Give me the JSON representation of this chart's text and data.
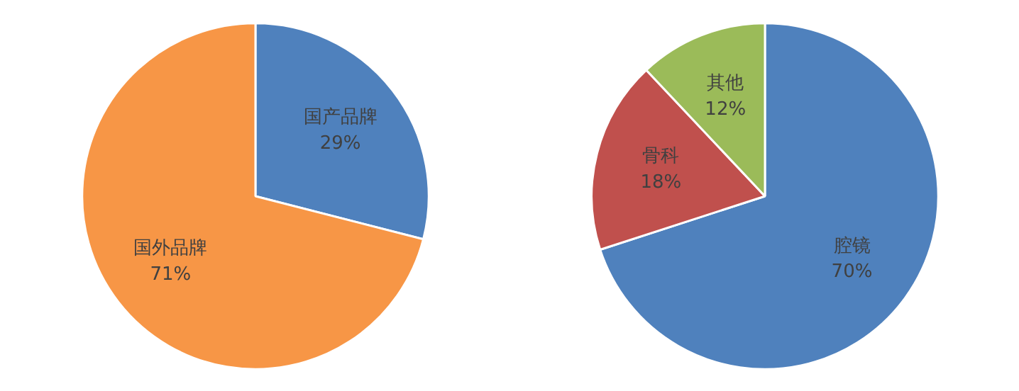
{
  "chart_data": [
    {
      "type": "pie",
      "categories": [
        "国产品牌",
        "国外品牌"
      ],
      "values": [
        29,
        71
      ],
      "value_labels": [
        "29%",
        "71%"
      ],
      "colors": [
        "#4f81bd",
        "#f79646"
      ]
    },
    {
      "type": "pie",
      "categories": [
        "腔镜",
        "骨科",
        "其他"
      ],
      "values": [
        70,
        18,
        12
      ],
      "value_labels": [
        "70%",
        "18%",
        "12%"
      ],
      "colors": [
        "#4f81bd",
        "#c0504d",
        "#9bbb59"
      ]
    }
  ]
}
